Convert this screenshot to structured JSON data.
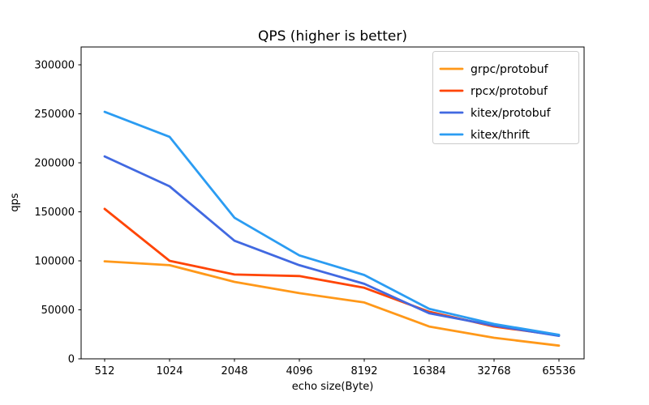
{
  "figure": {
    "background": "#ffffff",
    "text_color": "#000000",
    "spine_color": "#000000",
    "legend_border_color": "#cccccc",
    "legend_background": "#ffffff"
  },
  "chart_data": {
    "type": "line",
    "title": "QPS (higher is better)",
    "xlabel": "echo size(Byte)",
    "ylabel": "qps",
    "categories": [
      "512",
      "1024",
      "2048",
      "4096",
      "8192",
      "16384",
      "32768",
      "65536"
    ],
    "series": [
      {
        "name": "grpc/protobuf",
        "color": "#ff9819",
        "values": [
          99500,
          95500,
          78500,
          67000,
          57500,
          33000,
          21500,
          13500
        ]
      },
      {
        "name": "rpcx/protobuf",
        "color": "#ff4505",
        "values": [
          153000,
          100000,
          86000,
          84500,
          72500,
          48000,
          33000,
          24000
        ]
      },
      {
        "name": "kitex/protobuf",
        "color": "#4169e1",
        "values": [
          206500,
          176000,
          120500,
          95500,
          76500,
          46500,
          34000,
          23500
        ]
      },
      {
        "name": "kitex/thrift",
        "color": "#2b9cf2",
        "values": [
          252000,
          226500,
          144000,
          105500,
          85500,
          51000,
          35500,
          24500
        ]
      }
    ],
    "y_ticks": [
      0,
      50000,
      100000,
      150000,
      200000,
      250000,
      300000
    ],
    "ylim": [
      0,
      318000
    ],
    "grid": false,
    "legend_position": "upper right",
    "legend_labels": [
      "grpc/protobuf",
      "rpcx/protobuf",
      "kitex/protobuf",
      "kitex/thrift"
    ]
  }
}
